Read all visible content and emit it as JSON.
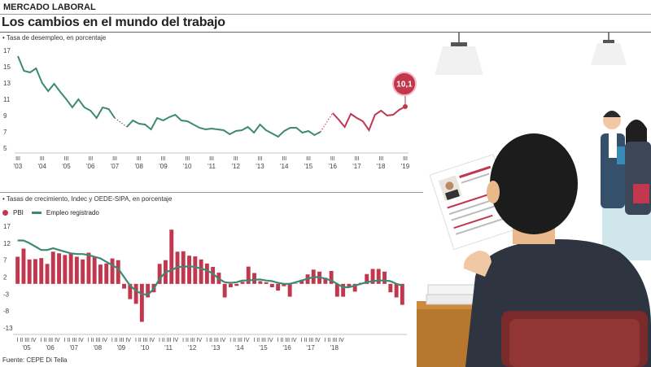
{
  "header": {
    "section": "MERCADO LABORAL",
    "title": "Los cambios en el mundo del trabajo"
  },
  "source": "Fuente: CEPE Di Tella",
  "colors": {
    "employment": "#3d8a74",
    "gdp": "#c0374e",
    "highlight": "#c0374e"
  },
  "chart_data": [
    {
      "type": "line",
      "title": "",
      "subtitle": "Tasa de desempleo, en porcentaje",
      "ylim": [
        5,
        17
      ],
      "yticks": [
        5,
        7,
        9,
        11,
        13,
        15,
        17
      ],
      "year_labels": [
        "'03",
        "'04",
        "'05",
        "'06",
        "'07",
        "'08",
        "'09",
        "'10",
        "'11",
        "'12",
        "'13",
        "'14",
        "'15",
        "'16",
        "'17",
        "'18",
        "'19"
      ],
      "quarter_marks": [
        "III",
        "III",
        "III",
        "III",
        "III",
        "III",
        "III",
        "III",
        "III",
        "III",
        "III",
        "III",
        "III",
        "III",
        "III",
        "III",
        "III"
      ],
      "annotation": "10,1",
      "series": [
        {
          "segment": "period-1",
          "x": [
            2003.0,
            2003.25,
            2003.5,
            2003.75,
            2004.0,
            2004.25,
            2004.5,
            2004.75,
            2005.0,
            2005.25,
            2005.5,
            2005.75,
            2006.0,
            2006.25,
            2006.5,
            2006.75,
            2007.0
          ],
          "values": [
            16.3,
            14.5,
            14.3,
            14.8,
            13.0,
            12.0,
            12.9,
            11.9,
            11.0,
            10.0,
            11.0,
            10.0,
            9.6,
            8.7,
            10.0,
            9.8,
            8.7
          ]
        },
        {
          "segment": "period-2",
          "x": [
            2007.5,
            2007.75,
            2008.0,
            2008.25,
            2008.5,
            2008.75,
            2009.0,
            2009.25,
            2009.5,
            2009.75,
            2010.0,
            2010.25,
            2010.5,
            2010.75,
            2011.0,
            2011.25,
            2011.5,
            2011.75,
            2012.0,
            2012.25,
            2012.5,
            2012.75,
            2013.0,
            2013.25,
            2013.5,
            2013.75,
            2014.0,
            2014.25,
            2014.5,
            2014.75,
            2015.0,
            2015.25,
            2015.5
          ],
          "values": [
            7.6,
            8.4,
            8.0,
            7.9,
            7.3,
            8.7,
            8.4,
            8.8,
            9.1,
            8.4,
            8.3,
            7.9,
            7.5,
            7.3,
            7.4,
            7.3,
            7.2,
            6.7,
            7.1,
            7.2,
            7.6,
            6.9,
            7.9,
            7.2,
            6.8,
            6.4,
            7.1,
            7.5,
            7.5,
            6.9,
            7.1,
            6.6,
            7.0
          ]
        },
        {
          "segment": "period-3",
          "x": [
            2016.0,
            2016.25,
            2016.5,
            2016.75,
            2017.0,
            2017.25,
            2017.5,
            2017.75,
            2018.0,
            2018.25,
            2018.5,
            2018.75,
            2019.0
          ],
          "values": [
            9.3,
            8.5,
            7.6,
            9.2,
            8.7,
            8.3,
            7.2,
            9.1,
            9.6,
            9.0,
            9.1,
            9.7,
            10.1
          ]
        }
      ]
    },
    {
      "type": "bar",
      "title": "",
      "subtitle": "Tasas de crecimiento, Indec y OEDE-SIPA, en porcentaje",
      "ylim": [
        -13,
        17
      ],
      "yticks": [
        17,
        12,
        7,
        2,
        -3,
        -8,
        -13
      ],
      "year_labels": [
        "'05",
        "'06",
        "'07",
        "'08",
        "'09",
        "'10",
        "'11",
        "'12",
        "'13",
        "'14",
        "'15",
        "'16",
        "'17",
        "'18"
      ],
      "quarter_marks": [
        "I II III IV",
        "I II III IV",
        "I II III IV",
        "I II III IV",
        "I II III IV",
        "I II III IV",
        "I II III IV",
        "I II III IV",
        "I II III IV",
        "I II III IV",
        "I II III IV",
        "I II III IV",
        "I II III IV",
        "I II III IV"
      ],
      "series": [
        {
          "name": "PBI",
          "values": [
            8.0,
            10.4,
            7.2,
            7.3,
            7.6,
            5.9,
            9.5,
            9.0,
            8.5,
            9.0,
            8.0,
            7.2,
            9.2,
            8.0,
            5.7,
            6.0,
            7.5,
            7.0,
            -1.4,
            -4.5,
            -5.9,
            -11.2,
            -4.0,
            -2.5,
            5.9,
            7.0,
            16.0,
            9.5,
            9.6,
            8.3,
            8.1,
            7.2,
            6.0,
            5.0,
            3.3,
            -4.0,
            -1.0,
            -0.6,
            0.6,
            5.1,
            3.2,
            0.8,
            0.5,
            -1.0,
            -2.0,
            -0.7,
            -3.8,
            0.1,
            1.2,
            2.8,
            4.2,
            3.6,
            1.8,
            3.8,
            -3.8,
            -3.8,
            -1.0,
            -2.3,
            0.3,
            2.9,
            4.4,
            4.4,
            3.6,
            -2.5,
            -4.0,
            -6.2
          ]
        },
        {
          "name": "Empleo registrado",
          "values": [
            12.8,
            12.8,
            12.0,
            11.0,
            10.0,
            10.0,
            10.5,
            10.0,
            9.5,
            9.0,
            8.8,
            8.8,
            8.5,
            8.0,
            7.5,
            6.5,
            5.5,
            4.5,
            2.0,
            -0.5,
            -2.0,
            -3.0,
            -3.2,
            -1.5,
            1.5,
            3.5,
            4.0,
            5.0,
            5.0,
            5.2,
            5.0,
            4.5,
            4.0,
            3.0,
            1.5,
            0.5,
            0.3,
            0.5,
            1.0,
            1.0,
            1.2,
            1.3,
            1.0,
            0.8,
            0.3,
            0.0,
            0.0,
            0.5,
            1.0,
            1.5,
            2.0,
            2.0,
            1.5,
            1.0,
            0.0,
            -1.0,
            -1.0,
            -0.5,
            0.0,
            0.5,
            0.8,
            1.0,
            1.0,
            0.8,
            0.0,
            -0.5
          ]
        }
      ]
    }
  ]
}
